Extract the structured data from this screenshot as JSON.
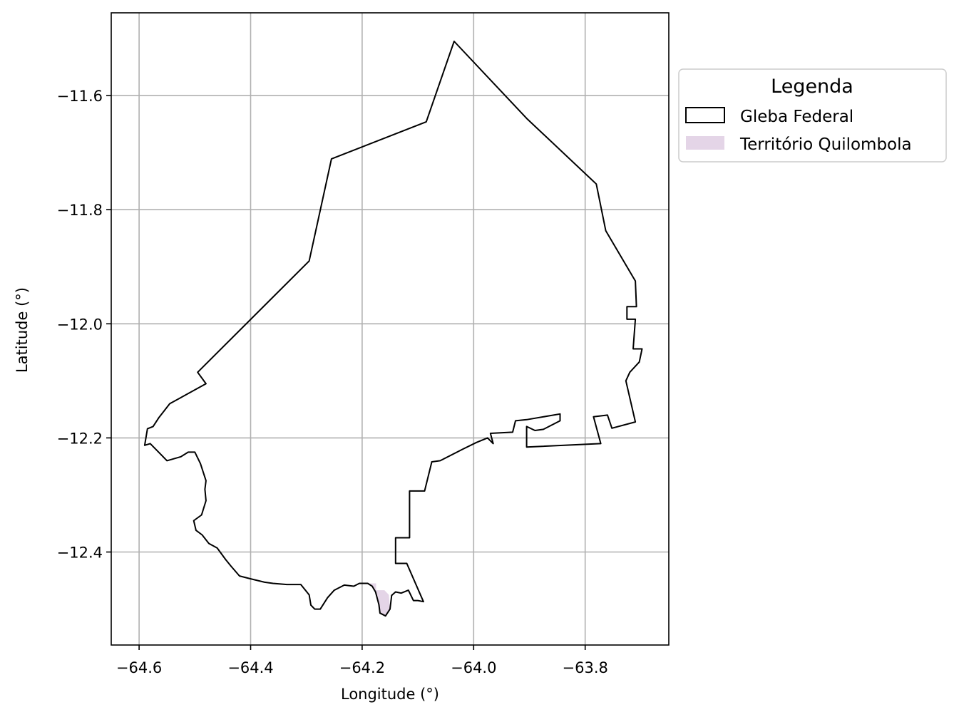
{
  "chart_data": {
    "type": "map",
    "xlabel": "Longitude (°)",
    "ylabel": "Latitude (°)",
    "xlim": [
      -64.65,
      -63.65
    ],
    "ylim": [
      -12.563,
      -11.455
    ],
    "x_ticks": [
      -64.6,
      -64.4,
      -64.2,
      -64.0,
      -63.8
    ],
    "x_tick_labels": [
      "−64.6",
      "−64.4",
      "−64.2",
      "−64.0",
      "−63.8"
    ],
    "y_ticks": [
      -11.6,
      -11.8,
      -12.0,
      -12.2,
      -12.4
    ],
    "y_tick_labels": [
      "−11.6",
      "−11.8",
      "−12.0",
      "−12.2",
      "−12.4"
    ],
    "grid": true,
    "legend": {
      "title": "Legenda",
      "placement": "outside-upper-right",
      "entries": [
        {
          "label": "Gleba Federal",
          "style": "outline",
          "edge_color": "#000000",
          "face_color": "none"
        },
        {
          "label": "Território Quilombola",
          "style": "fill",
          "face_color": "#e4d5e7"
        }
      ]
    },
    "series": [
      {
        "name": "Gleba Federal",
        "geometry": "polygon",
        "edge_color": "#000000",
        "fill": "none",
        "coordinates": [
          [
            -64.59,
            -12.213
          ],
          [
            -64.585,
            -12.184
          ],
          [
            -64.575,
            -12.18
          ],
          [
            -64.565,
            -12.165
          ],
          [
            -64.545,
            -12.14
          ],
          [
            -64.48,
            -12.105
          ],
          [
            -64.495,
            -12.085
          ],
          [
            -64.295,
            -11.89
          ],
          [
            -64.255,
            -11.711
          ],
          [
            -64.085,
            -11.646
          ],
          [
            -64.035,
            -11.505
          ],
          [
            -63.905,
            -11.64
          ],
          [
            -63.78,
            -11.755
          ],
          [
            -63.763,
            -11.837
          ],
          [
            -63.71,
            -11.925
          ],
          [
            -63.708,
            -11.97
          ],
          [
            -63.725,
            -11.97
          ],
          [
            -63.725,
            -11.992
          ],
          [
            -63.71,
            -11.992
          ],
          [
            -63.714,
            -12.044
          ],
          [
            -63.698,
            -12.044
          ],
          [
            -63.703,
            -12.067
          ],
          [
            -63.72,
            -12.085
          ],
          [
            -63.727,
            -12.1
          ],
          [
            -63.71,
            -12.172
          ],
          [
            -63.752,
            -12.183
          ],
          [
            -63.76,
            -12.16
          ],
          [
            -63.785,
            -12.163
          ],
          [
            -63.772,
            -12.21
          ],
          [
            -63.905,
            -12.216
          ],
          [
            -63.905,
            -12.18
          ],
          [
            -63.89,
            -12.187
          ],
          [
            -63.875,
            -12.185
          ],
          [
            -63.865,
            -12.18
          ],
          [
            -63.845,
            -12.17
          ],
          [
            -63.845,
            -12.158
          ],
          [
            -63.905,
            -12.168
          ],
          [
            -63.925,
            -12.17
          ],
          [
            -63.93,
            -12.19
          ],
          [
            -63.97,
            -12.192
          ],
          [
            -63.965,
            -12.21
          ],
          [
            -63.975,
            -12.2
          ],
          [
            -63.995,
            -12.208
          ],
          [
            -64.02,
            -12.22
          ],
          [
            -64.06,
            -12.24
          ],
          [
            -64.075,
            -12.242
          ],
          [
            -64.088,
            -12.293
          ],
          [
            -64.115,
            -12.293
          ],
          [
            -64.115,
            -12.375
          ],
          [
            -64.14,
            -12.375
          ],
          [
            -64.14,
            -12.42
          ],
          [
            -64.12,
            -12.42
          ],
          [
            -64.09,
            -12.487
          ],
          [
            -64.1,
            -12.485
          ],
          [
            -64.108,
            -12.485
          ],
          [
            -64.117,
            -12.467
          ],
          [
            -64.13,
            -12.472
          ],
          [
            -64.14,
            -12.47
          ],
          [
            -64.147,
            -12.476
          ],
          [
            -64.15,
            -12.5
          ],
          [
            -64.158,
            -12.512
          ],
          [
            -64.168,
            -12.507
          ],
          [
            -64.17,
            -12.492
          ],
          [
            -64.176,
            -12.47
          ],
          [
            -64.182,
            -12.46
          ],
          [
            -64.19,
            -12.455
          ],
          [
            -64.205,
            -12.455
          ],
          [
            -64.215,
            -12.46
          ],
          [
            -64.232,
            -12.458
          ],
          [
            -64.25,
            -12.467
          ],
          [
            -64.262,
            -12.48
          ],
          [
            -64.275,
            -12.5
          ],
          [
            -64.285,
            -12.5
          ],
          [
            -64.292,
            -12.493
          ],
          [
            -64.295,
            -12.475
          ],
          [
            -64.31,
            -12.457
          ],
          [
            -64.335,
            -12.457
          ],
          [
            -64.36,
            -12.455
          ],
          [
            -64.375,
            -12.453
          ],
          [
            -64.4,
            -12.447
          ],
          [
            -64.42,
            -12.442
          ],
          [
            -64.435,
            -12.425
          ],
          [
            -64.445,
            -12.413
          ],
          [
            -64.46,
            -12.393
          ],
          [
            -64.475,
            -12.385
          ],
          [
            -64.487,
            -12.37
          ],
          [
            -64.498,
            -12.362
          ],
          [
            -64.502,
            -12.345
          ],
          [
            -64.488,
            -12.335
          ],
          [
            -64.48,
            -12.31
          ],
          [
            -64.482,
            -12.29
          ],
          [
            -64.48,
            -12.275
          ],
          [
            -64.49,
            -12.245
          ],
          [
            -64.5,
            -12.225
          ],
          [
            -64.512,
            -12.225
          ],
          [
            -64.525,
            -12.233
          ],
          [
            -64.55,
            -12.24
          ],
          [
            -64.565,
            -12.225
          ],
          [
            -64.58,
            -12.21
          ],
          [
            -64.59,
            -12.213
          ]
        ]
      },
      {
        "name": "Território Quilombola",
        "geometry": "polygon",
        "face_color": "#e4d5e7",
        "edge_color": "#b896bd",
        "coordinates": [
          [
            -64.187,
            -12.455
          ],
          [
            -64.175,
            -12.455
          ],
          [
            -64.175,
            -12.467
          ],
          [
            -64.16,
            -12.467
          ],
          [
            -64.152,
            -12.475
          ],
          [
            -64.15,
            -12.5
          ],
          [
            -64.158,
            -12.512
          ],
          [
            -64.168,
            -12.507
          ],
          [
            -64.17,
            -12.492
          ],
          [
            -64.176,
            -12.47
          ],
          [
            -64.182,
            -12.46
          ],
          [
            -64.187,
            -12.455
          ]
        ]
      }
    ]
  }
}
